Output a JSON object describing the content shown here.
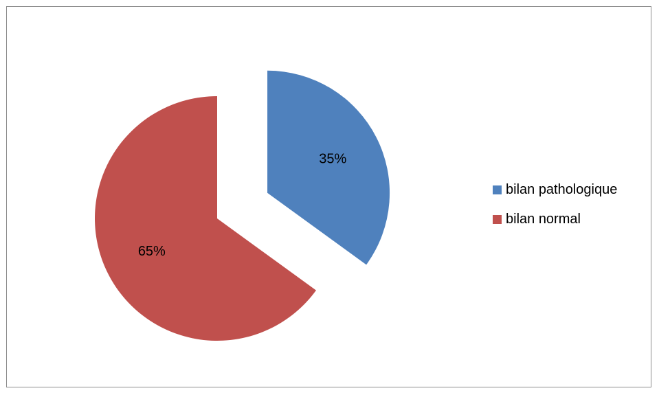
{
  "chart_data": {
    "type": "pie",
    "categories": [
      "bilan pathologique",
      "bilan normal"
    ],
    "values": [
      35,
      65
    ],
    "data_labels": [
      "35%",
      "65%"
    ],
    "colors": [
      "#4F81BD",
      "#C0504D"
    ],
    "exploded": true,
    "legend_position": "right"
  },
  "legend": {
    "items": [
      {
        "label": "bilan pathologique",
        "color": "#4F81BD"
      },
      {
        "label": "bilan normal",
        "color": "#C0504D"
      }
    ]
  }
}
